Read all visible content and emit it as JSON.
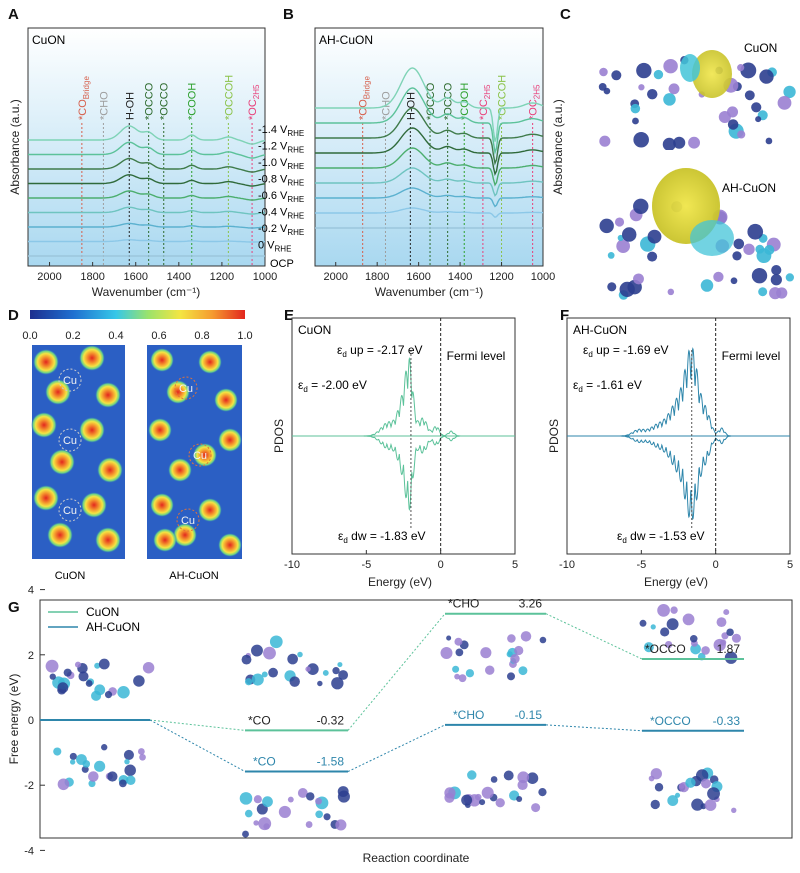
{
  "panels": {
    "A": {
      "letter": "A",
      "sample": "CuON",
      "potentials": [
        "-1.4 V",
        "-1.2 V",
        "-1.0 V",
        "-0.8 V",
        "-0.6 V",
        "-0.4 V",
        "-0.2 V",
        "0 V",
        "OCP"
      ],
      "sub": "RHE",
      "species": [
        {
          "label": "*CO",
          "sub": "Bridge",
          "wn": 1850,
          "color": "#d6604d"
        },
        {
          "label": "*CHO",
          "sub": "",
          "wn": 1750,
          "color": "#9e9e9e"
        },
        {
          "label": "H-OH",
          "sub": "",
          "wn": 1630,
          "color": "#222222"
        },
        {
          "label": "*OCCO",
          "sub": "",
          "wn": 1540,
          "color": "#2e6b2e"
        },
        {
          "label": "*OCCO",
          "sub": "",
          "wn": 1470,
          "color": "#2e6b2e"
        },
        {
          "label": "*COOH",
          "sub": "",
          "wn": 1340,
          "color": "#2ca02c"
        },
        {
          "label": "*OCCOH",
          "sub": "",
          "wn": 1170,
          "color": "#8bc34a"
        },
        {
          "label": "*OC",
          "sub": "2H5",
          "wn": 1060,
          "color": "#e8407a"
        }
      ]
    },
    "B": {
      "letter": "B",
      "sample": "AH-CuON",
      "species": [
        {
          "label": "*CO",
          "sub": "Bridge",
          "wn": 1870,
          "color": "#d6604d"
        },
        {
          "label": "*CHO",
          "sub": "",
          "wn": 1760,
          "color": "#9e9e9e"
        },
        {
          "label": "H-OH",
          "sub": "",
          "wn": 1640,
          "color": "#222222"
        },
        {
          "label": "*OCCO",
          "sub": "",
          "wn": 1545,
          "color": "#2e6b2e"
        },
        {
          "label": "*OCCO",
          "sub": "",
          "wn": 1460,
          "color": "#2e6b2e"
        },
        {
          "label": "*COOH",
          "sub": "",
          "wn": 1380,
          "color": "#2ca02c"
        },
        {
          "label": "*OC",
          "sub": "2H5",
          "wn": 1290,
          "color": "#e8407a"
        },
        {
          "label": "*OCCOH",
          "sub": "",
          "wn": 1200,
          "color": "#8bc34a"
        },
        {
          "label": "*OC",
          "sub": "2H5",
          "wn": 1050,
          "color": "#e8407a"
        }
      ]
    },
    "C": {
      "letter": "C",
      "top": "CuON",
      "bottom": "AH-CuON"
    },
    "D": {
      "letter": "D",
      "colorbar_ticks": [
        "0.0",
        "0.2",
        "0.4",
        "0.6",
        "0.8",
        "1.0"
      ],
      "left": "CuON",
      "right": "AH-CuON",
      "site": "Cu"
    },
    "E": {
      "letter": "E",
      "sample": "CuON",
      "up": "up = -2.17 eV",
      "center": "= -2.00 eV",
      "dw": "dw = -1.83 eV"
    },
    "F": {
      "letter": "F",
      "sample": "AH-CuON",
      "up": "up = -1.69 eV",
      "center": "= -1.61 eV",
      "dw": "dw = -1.53 eV"
    },
    "G": {
      "letter": "G"
    }
  },
  "common": {
    "absorbance": "Absorbance (a.u.)",
    "wavenumber": "Wavenumber (cm⁻¹)",
    "pdos": "PDOS",
    "energy": "Energy (eV)",
    "fermi": "Fermi level",
    "eps": "ε",
    "eps_sub": "d"
  },
  "colors": {
    "cuon": "#5cc29a",
    "ahcuon": "#2e86ab"
  },
  "chart_data": [
    {
      "type": "line",
      "panel": "A",
      "xlabel": "Wavenumber (cm⁻¹)",
      "ylabel": "Absorbance (a.u.)",
      "xlim": [
        2100,
        1000
      ],
      "xticks": [
        2000,
        1800,
        1600,
        1400,
        1200,
        1000
      ],
      "series": [
        {
          "name": "-1.4 V"
        },
        {
          "name": "-1.2 V"
        },
        {
          "name": "-1.0 V"
        },
        {
          "name": "-0.8 V"
        },
        {
          "name": "-0.6 V"
        },
        {
          "name": "-0.4 V"
        },
        {
          "name": "-0.2 V"
        },
        {
          "name": "0 V"
        },
        {
          "name": "OCP"
        }
      ]
    },
    {
      "type": "line",
      "panel": "B",
      "xlabel": "Wavenumber (cm⁻¹)",
      "ylabel": "Absorbance (a.u.)",
      "xlim": [
        2100,
        1000
      ],
      "xticks": [
        2000,
        1800,
        1600,
        1400,
        1200,
        1000
      ]
    },
    {
      "type": "line",
      "panel": "E",
      "xlabel": "Energy (eV)",
      "ylabel": "PDOS",
      "xlim": [
        -10,
        5
      ],
      "xticks": [
        -10,
        -5,
        0,
        5
      ],
      "fermi": 0
    },
    {
      "type": "line",
      "panel": "F",
      "xlabel": "Energy (eV)",
      "ylabel": "PDOS",
      "xlim": [
        -10,
        5
      ],
      "xticks": [
        -10,
        -5,
        0,
        5
      ],
      "fermi": 0
    },
    {
      "type": "line",
      "panel": "G",
      "xlabel": "Reaction coordinate",
      "ylabel": "Free energy (eV)",
      "ylim": [
        -5,
        5
      ],
      "yticks": [
        4,
        2,
        0,
        -2,
        -4
      ],
      "series": [
        {
          "name": "CuON",
          "color": "#5cc29a",
          "steps": [
            {
              "state": "",
              "value": 0.0
            },
            {
              "state": "*CO",
              "value": -0.32,
              "label": "-0.32"
            },
            {
              "state": "*CHO",
              "value": 3.26,
              "label": "3.26"
            },
            {
              "state": "*OCCO",
              "value": 1.87,
              "label": "1.87"
            }
          ]
        },
        {
          "name": "AH-CuON",
          "color": "#2e86ab",
          "steps": [
            {
              "state": "",
              "value": 0.0
            },
            {
              "state": "*CO",
              "value": -1.58,
              "label": "-1.58"
            },
            {
              "state": "*CHO",
              "value": -0.15,
              "label": "-0.15"
            },
            {
              "state": "*OCCO",
              "value": -0.33,
              "label": "-0.33"
            }
          ]
        }
      ]
    }
  ]
}
